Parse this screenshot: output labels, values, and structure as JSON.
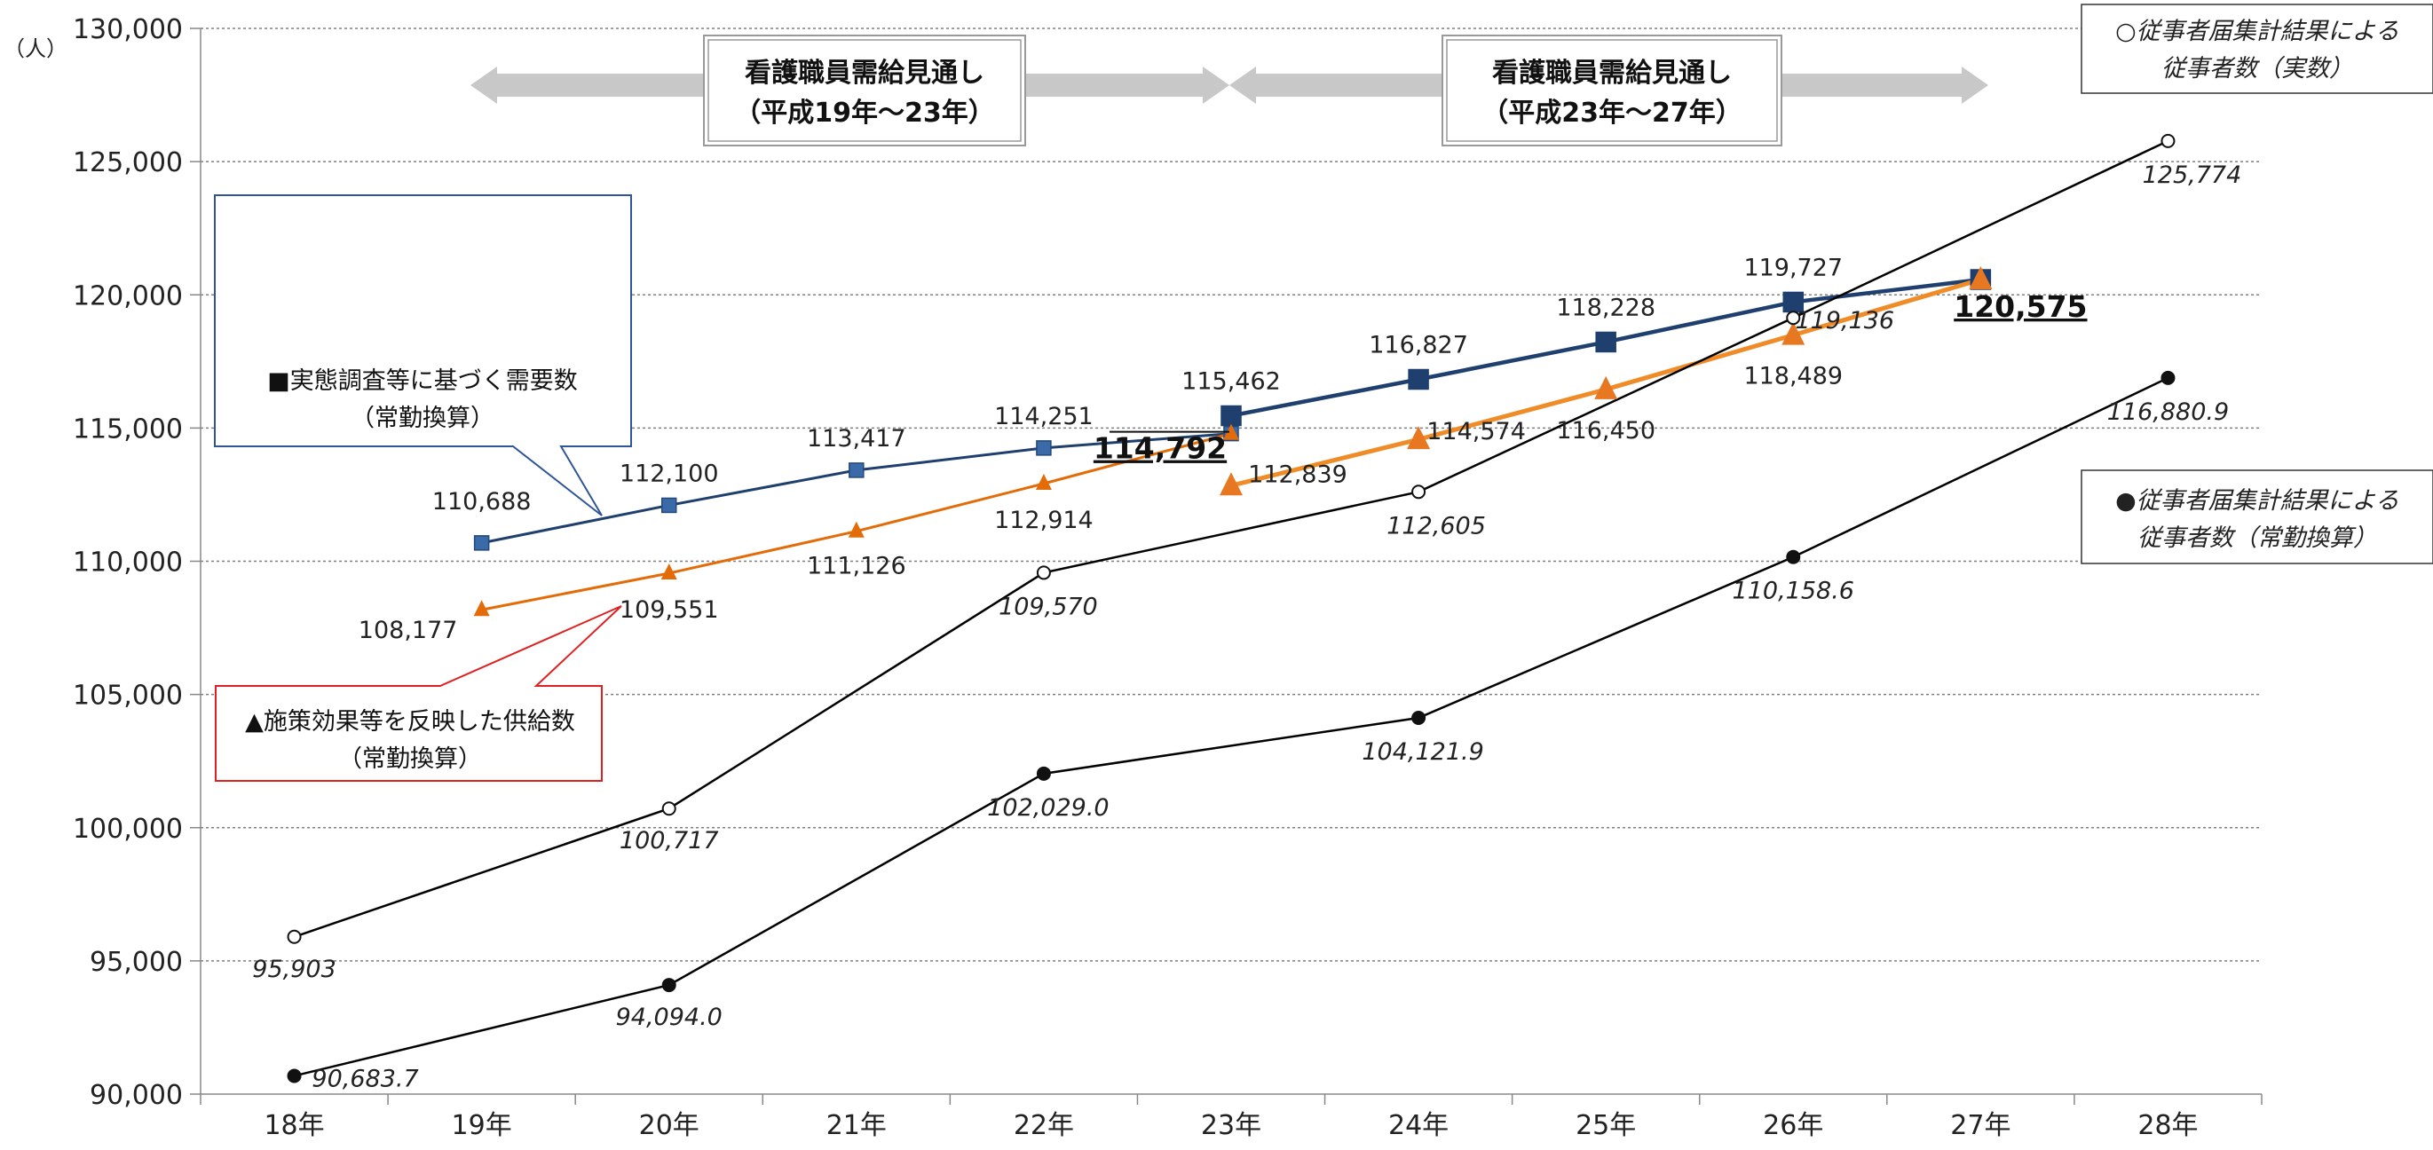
{
  "chart_data": {
    "type": "line",
    "unit_label": "（人）",
    "categories": [
      "18年",
      "19年",
      "20年",
      "21年",
      "22年",
      "23年",
      "24年",
      "25年",
      "26年",
      "27年",
      "28年"
    ],
    "ylim": [
      90000,
      130000
    ],
    "yticks": [
      "90,000",
      "95,000",
      "100,000",
      "105,000",
      "110,000",
      "115,000",
      "120,000",
      "125,000",
      "130,000"
    ],
    "grid": true,
    "series": [
      {
        "key": "demand",
        "color": "#1f3f6e",
        "values": [
          null,
          110688,
          112100,
          113417,
          114251,
          114792,
          null,
          null,
          null,
          null,
          null
        ],
        "labels": [
          "",
          "110,688",
          "112,100",
          "113,417",
          "114,251",
          "114,792",
          "",
          "",
          "",
          "",
          ""
        ]
      },
      {
        "key": "demand2",
        "color": "#1f3f6e",
        "values": [
          null,
          null,
          null,
          null,
          null,
          115462,
          116827,
          118228,
          119727,
          120575,
          null
        ],
        "labels": [
          "",
          "",
          "",
          "",
          "",
          "115,462",
          "116,827",
          "118,228",
          "119,727",
          "120,575",
          ""
        ]
      },
      {
        "key": "supply",
        "color": "#e36c09",
        "values": [
          null,
          108177,
          109551,
          111126,
          112914,
          114792,
          null,
          null,
          null,
          null,
          null
        ],
        "labels": [
          "",
          "108,177",
          "109,551",
          "111,126",
          "112,914",
          "",
          "",
          "",
          "",
          "",
          ""
        ]
      },
      {
        "key": "supply2",
        "color": "#f08c28",
        "values": [
          null,
          null,
          null,
          null,
          null,
          112839,
          114574,
          116450,
          118489,
          120575,
          null
        ],
        "labels": [
          "",
          "",
          "",
          "",
          "",
          "112,839",
          "114,574",
          "116,450",
          "118,489",
          "",
          ""
        ]
      },
      {
        "key": "actual",
        "color": "#000000",
        "values": [
          95903,
          null,
          100717,
          null,
          109570,
          null,
          112605,
          null,
          119136,
          null,
          125774
        ],
        "labels": [
          "95,903",
          "",
          "100,717",
          "",
          "109,570",
          "",
          "112,605",
          "",
          "119,136",
          "",
          "125,774"
        ]
      },
      {
        "key": "fte",
        "color": "#000000",
        "values": [
          90683.7,
          null,
          94094.0,
          null,
          102029.0,
          null,
          104121.9,
          null,
          110158.6,
          null,
          116880.9
        ],
        "labels": [
          "90,683.7",
          "",
          "94,094.0",
          "",
          "102,029.0",
          "",
          "104,121.9",
          "",
          "110,158.6",
          "",
          "116,880.9"
        ]
      }
    ],
    "legend_boxes": {
      "demand": "■実態調査等に基づく需要数\n（常勤換算）",
      "supply": "▲施策効果等を反映した供給数\n（常勤換算）",
      "actual": "○従事者届集計結果による\n従事者数（実数）",
      "fte": "●従事者届集計結果による\n従事者数（常勤換算）"
    },
    "periods": [
      "看護職員需給見通し\n（平成19年～23年）",
      "看護職員需給見通し\n（平成23年～27年）"
    ]
  }
}
